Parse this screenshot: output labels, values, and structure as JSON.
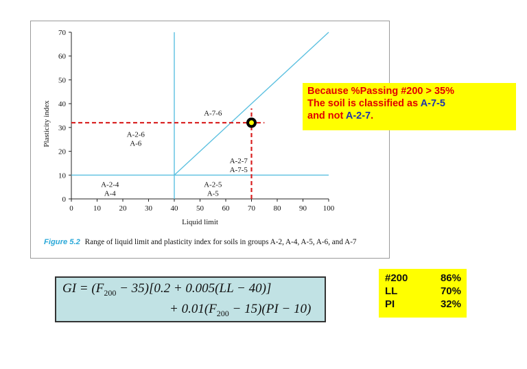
{
  "chart_data": {
    "type": "diagram",
    "xlabel": "Liquid limit",
    "ylabel": "Plasticity index",
    "xlim": [
      0,
      100
    ],
    "ylim": [
      0,
      70
    ],
    "xticks": [
      0,
      10,
      20,
      30,
      40,
      50,
      60,
      70,
      80,
      90,
      100
    ],
    "yticks": [
      0,
      10,
      20,
      30,
      40,
      50,
      60,
      70
    ],
    "boundary_lines": [
      {
        "x": [
          40,
          40
        ],
        "y": [
          0,
          70
        ]
      },
      {
        "x": [
          0,
          100
        ],
        "y": [
          10,
          10
        ]
      },
      {
        "x": [
          40,
          100
        ],
        "y": [
          10,
          70
        ]
      }
    ],
    "regions": [
      {
        "label": "A-7-6",
        "x": 55,
        "y": 35
      },
      {
        "label": "A-2-6\nA-6",
        "x": 25,
        "y": 26
      },
      {
        "label": "A-2-7\nA-7-5",
        "x": 65,
        "y": 15
      },
      {
        "label": "A-2-4\nA-4",
        "x": 15,
        "y": 5
      },
      {
        "label": "A-2-5\nA-5",
        "x": 55,
        "y": 5
      }
    ],
    "marked_point": {
      "x": 70,
      "y": 32
    },
    "guide_lines": [
      {
        "x": [
          0,
          75
        ],
        "y": [
          32,
          32
        ]
      },
      {
        "x": [
          70,
          70
        ],
        "y": [
          0,
          38
        ]
      }
    ],
    "colors": {
      "boundary": "#5bc0e0",
      "guide": "#d81e1e",
      "point_outer": "#000000",
      "point_inner": "#ffff00"
    },
    "grid": false
  },
  "caption": {
    "number": "Figure 5.2",
    "text": "Range of liquid limit and plasticity index for soils in groups A-2, A-4, A-5, A-6, and A-7"
  },
  "callout": {
    "line1": "Because %Passing #200 > 35%",
    "line2_a": "The soil is classified as ",
    "line2_b": "A-7-5",
    "line3_a": "and not ",
    "line3_b": "A-2-7",
    "line3_c": "."
  },
  "formula": {
    "line1": "GI = (F200 − 35)[0.2 + 0.005(LL − 40)]",
    "line2": "+ 0.01(F200 − 15)(PI − 10)"
  },
  "params": [
    {
      "label": "#200",
      "value": "86%"
    },
    {
      "label": "LL",
      "value": "70%"
    },
    {
      "label": "PI",
      "value": "32%"
    }
  ]
}
